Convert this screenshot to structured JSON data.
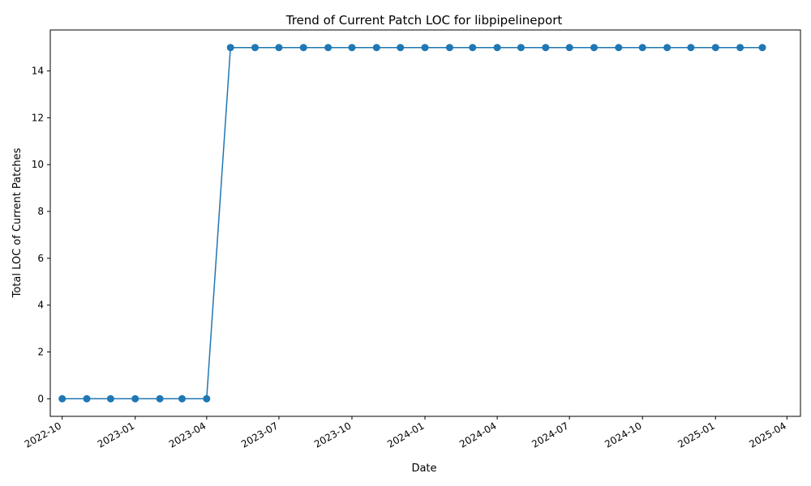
{
  "chart_data": {
    "type": "line",
    "title": "Trend of Current Patch LOC for libpipelineport",
    "xlabel": "Date",
    "ylabel": "Total LOC of Current Patches",
    "x_ticks": [
      "2022-10",
      "2023-01",
      "2023-04",
      "2023-07",
      "2023-10",
      "2024-01",
      "2024-04",
      "2024-07",
      "2024-10",
      "2025-01",
      "2025-04"
    ],
    "y_ticks": [
      0,
      2,
      4,
      6,
      8,
      10,
      12,
      14
    ],
    "ylim": [
      -0.75,
      15.75
    ],
    "xlim": [
      "2022-09-16",
      "2025-04-18"
    ],
    "grid": false,
    "colors": {
      "line": "#1f77b4"
    },
    "series": [
      {
        "x": [
          "2022-10-01",
          "2022-11-01",
          "2022-12-01",
          "2023-01-01",
          "2023-02-01",
          "2023-03-01",
          "2023-04-01",
          "2023-05-01",
          "2023-06-01",
          "2023-07-01",
          "2023-08-01",
          "2023-09-01",
          "2023-10-01",
          "2023-11-01",
          "2023-12-01",
          "2024-01-01",
          "2024-02-01",
          "2024-03-01",
          "2024-04-01",
          "2024-05-01",
          "2024-06-01",
          "2024-07-01",
          "2024-08-01",
          "2024-09-01",
          "2024-10-01",
          "2024-11-01",
          "2024-12-01",
          "2025-01-01",
          "2025-02-01",
          "2025-03-01"
        ],
        "values": [
          0,
          0,
          0,
          0,
          0,
          0,
          0,
          15,
          15,
          15,
          15,
          15,
          15,
          15,
          15,
          15,
          15,
          15,
          15,
          15,
          15,
          15,
          15,
          15,
          15,
          15,
          15,
          15,
          15,
          15
        ]
      }
    ]
  }
}
